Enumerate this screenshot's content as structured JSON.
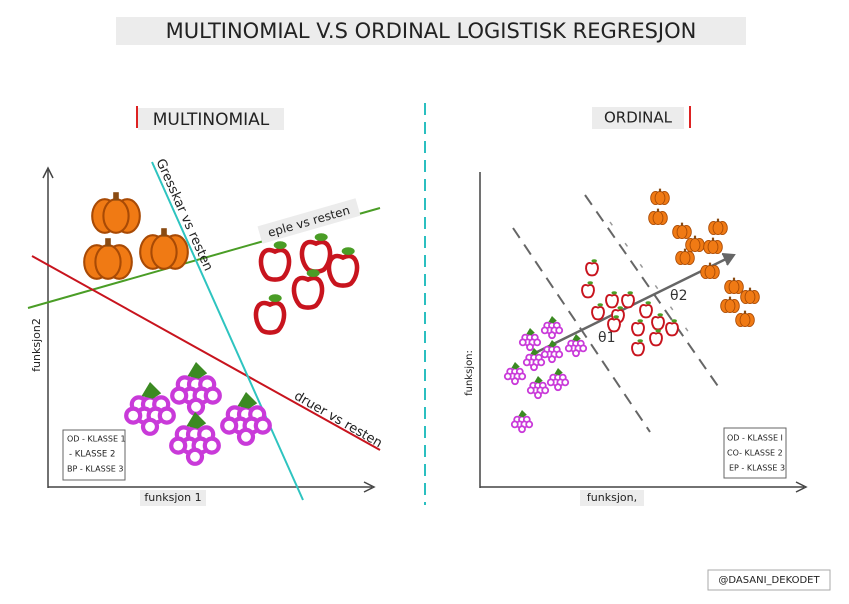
{
  "header": {
    "title": "MULTINOMIAL V.S ORDINAL LOGISTISK REGRESJON"
  },
  "multinomial": {
    "title": "MULTINOMIAL",
    "y_label": "funksjon2",
    "x_label": "funksjon 1",
    "lines": [
      "Gresskar vs resten",
      "eple vs resten",
      "druer vs resten"
    ],
    "legend": [
      "OD - KLASSE 1",
      "- KLASSE 2",
      "BP - KLASSE 3"
    ]
  },
  "ordinal": {
    "title": "ORDINAL",
    "y_label": "funksjon:",
    "x_label": "funksjon,",
    "thetas": [
      "θ1",
      "θ2"
    ],
    "legend": [
      "OD - KLASSE I",
      "CO- KLASSE 2",
      "EP - KLASSE 3"
    ]
  },
  "footer": {
    "credit": "@DASANI_DEKODET"
  }
}
